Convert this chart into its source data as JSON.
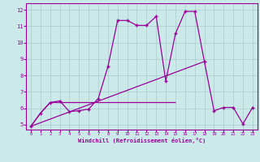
{
  "xlabel": "Windchill (Refroidissement éolien,°C)",
  "bg_color": "#cce9e9",
  "line_color": "#990099",
  "grid_color": "#aacccc",
  "xlim": [
    -0.5,
    23.5
  ],
  "ylim": [
    4.7,
    12.4
  ],
  "xticks": [
    0,
    1,
    2,
    3,
    4,
    5,
    6,
    7,
    8,
    9,
    10,
    11,
    12,
    13,
    14,
    15,
    16,
    17,
    18,
    19,
    20,
    21,
    22,
    23
  ],
  "yticks": [
    5,
    6,
    7,
    8,
    9,
    10,
    11,
    12
  ],
  "series1_x": [
    0,
    1,
    2,
    3,
    4,
    5,
    6,
    7,
    8,
    9,
    10,
    11,
    12,
    13,
    14,
    15,
    16,
    17,
    18,
    19,
    20,
    21,
    22,
    23
  ],
  "series1_y": [
    4.9,
    5.7,
    6.35,
    6.45,
    5.8,
    5.85,
    5.95,
    6.6,
    8.55,
    11.35,
    11.35,
    11.05,
    11.05,
    11.6,
    7.65,
    10.55,
    11.9,
    11.9,
    8.85,
    5.85,
    6.05,
    6.05,
    5.05,
    6.05
  ],
  "series2_x": [
    0,
    1,
    2,
    3,
    4,
    5,
    6,
    7,
    8,
    9,
    10,
    11,
    12,
    13,
    14,
    15
  ],
  "series2_y": [
    4.9,
    5.7,
    6.35,
    6.35,
    6.35,
    6.35,
    6.35,
    6.35,
    6.35,
    6.35,
    6.35,
    6.35,
    6.35,
    6.35,
    6.35,
    6.35
  ],
  "series3_x": [
    0,
    18
  ],
  "series3_y": [
    4.9,
    8.85
  ],
  "marker": "+",
  "markersize": 3,
  "linewidth": 0.9
}
